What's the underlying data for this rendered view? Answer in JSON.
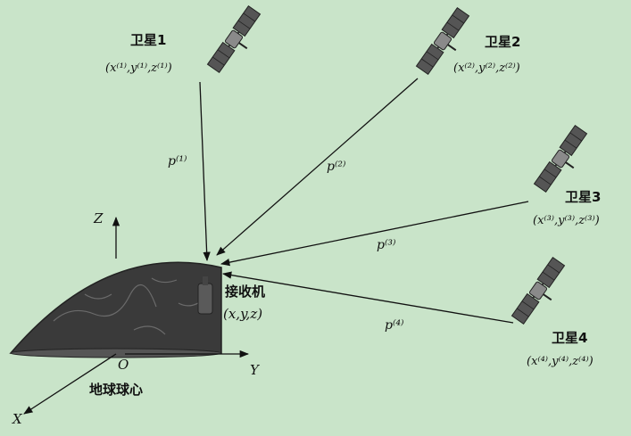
{
  "satellites": [
    {
      "name": "卫星1",
      "coord": "(x⁽¹⁾,y⁽¹⁾,z⁽¹⁾)",
      "range": "p⁽¹⁾"
    },
    {
      "name": "卫星2",
      "coord": "(x⁽²⁾,y⁽²⁾,z⁽²⁾)",
      "range": "p⁽²⁾"
    },
    {
      "name": "卫星3",
      "coord": "(x⁽³⁾,y⁽³⁾,z⁽³⁾)",
      "range": "p⁽³⁾"
    },
    {
      "name": "卫星4",
      "coord": "(x⁽⁴⁾,y⁽⁴⁾,z⁽⁴⁾)",
      "range": "p⁽⁴⁾"
    }
  ],
  "receiver": {
    "name": "接收机",
    "coord": "(x,y,z)"
  },
  "earth": {
    "center_label": "地球球心",
    "origin": "O"
  },
  "axes": {
    "x": "X",
    "y": "Y",
    "z": "Z"
  },
  "colors": {
    "background": "#c9e4c9",
    "earth": "#3a3a3a",
    "ink": "#111111"
  },
  "icons": [
    "satellite-icon",
    "receiver-antenna-icon"
  ]
}
